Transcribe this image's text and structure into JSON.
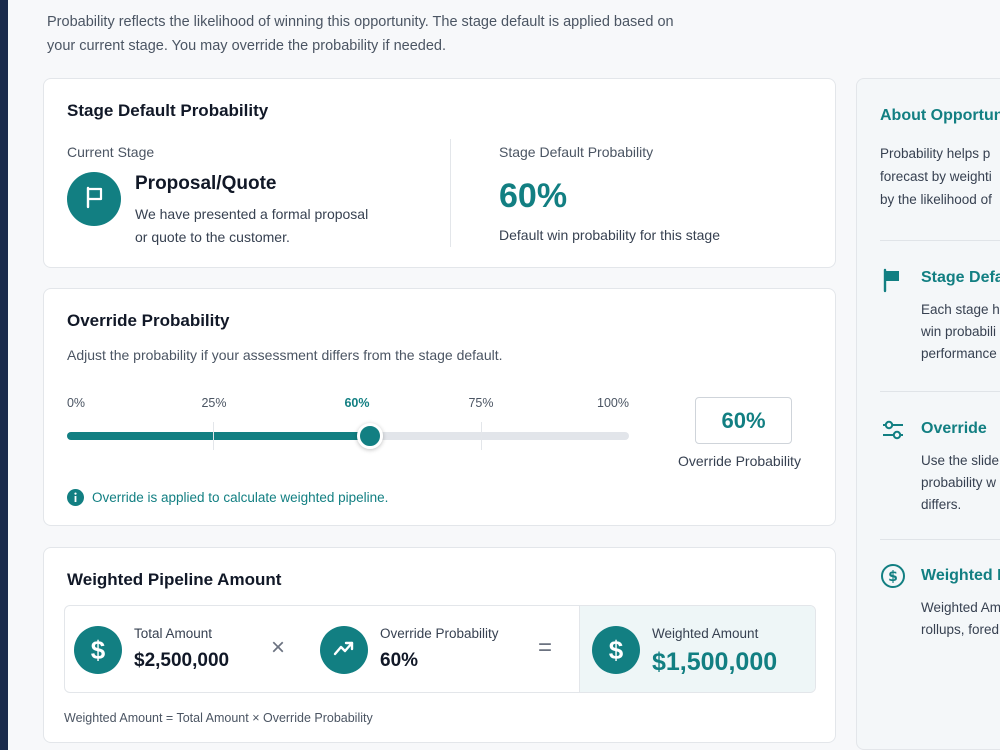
{
  "intro": {
    "line1": "Probability reflects the likelihood of winning this opportunity. The stage default is applied based on",
    "line2": "your current stage. You may override the probability if needed."
  },
  "stage_card": {
    "title": "Stage Default Probability",
    "current_stage_label": "Current Stage",
    "stage_name": "Proposal/Quote",
    "stage_desc_line1": "We have presented a formal proposal",
    "stage_desc_line2": "or quote to the customer.",
    "default_label": "Stage Default Probability",
    "default_value": "60%",
    "default_caption": "Default win probability for this stage",
    "icon": "flag-icon"
  },
  "override_card": {
    "title": "Override Probability",
    "subtitle": "Adjust the probability if your assessment differs from the stage default.",
    "ticks": [
      "0%",
      "25%",
      "60%",
      "75%",
      "100%"
    ],
    "slider_value_percent": 60,
    "override_value": "60%",
    "override_caption": "Override Probability",
    "info_text": "Override is applied to calculate weighted pipeline.",
    "info_icon": "info-icon"
  },
  "weighted_card": {
    "title": "Weighted Pipeline Amount",
    "total_label": "Total Amount",
    "total_value": "$2,500,000",
    "multiply_symbol": "×",
    "prob_label": "Override Probability",
    "prob_value": "60%",
    "equals_symbol": "=",
    "weighted_label": "Weighted Amount",
    "weighted_value": "$1,500,000",
    "formula": "Weighted Amount = Total Amount × Override Probability"
  },
  "about_panel": {
    "title": "About Opportun",
    "text_line1": "Probability helps p",
    "text_line2": "forecast by weighti",
    "text_line3": "by the likelihood of",
    "sections": [
      {
        "title": "Stage Defa",
        "line1": "Each stage h",
        "line2": "win probabili",
        "line3": "performance",
        "icon": "flag-icon"
      },
      {
        "title": "Override",
        "line1": "Use the slide",
        "line2": "probability w",
        "line3": "differs.",
        "icon": "sliders-icon"
      },
      {
        "title": "Weighted I",
        "line1": "Weighted Am",
        "line2": "rollups, fored",
        "icon": "dollar-circle-icon"
      }
    ]
  },
  "colors": {
    "accent": "#127f82",
    "sidebar": "#1a2b4c"
  }
}
